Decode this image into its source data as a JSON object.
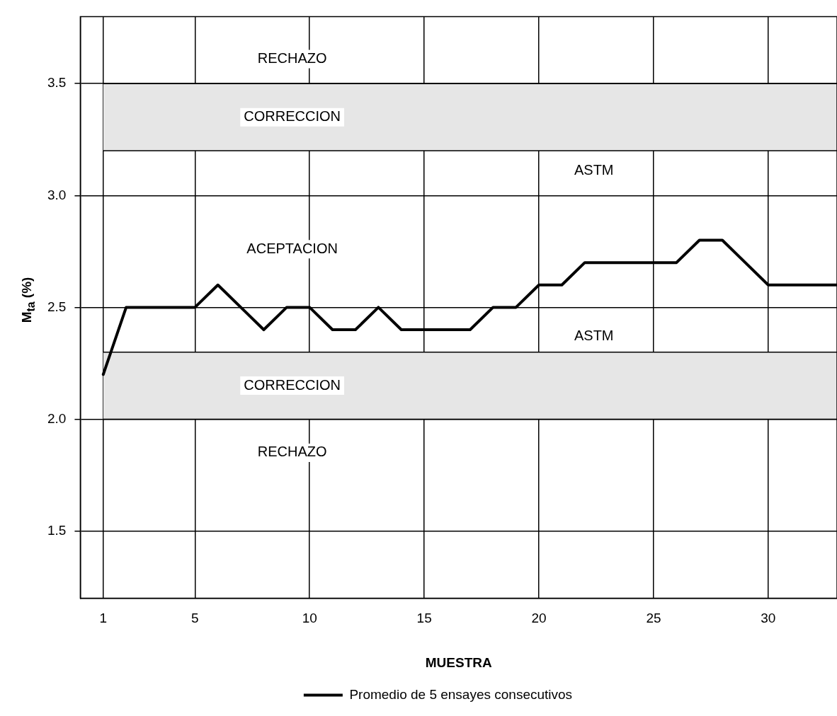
{
  "chart_data": {
    "type": "line",
    "xlabel": "MUESTRA",
    "ylabel": "M$_{ta}$ (%)",
    "x": [
      1,
      2,
      3,
      4,
      5,
      6,
      7,
      8,
      9,
      10,
      11,
      12,
      13,
      14,
      15,
      16,
      17,
      18,
      19,
      20,
      21,
      22,
      23,
      24,
      25,
      26,
      27,
      28,
      29,
      30,
      31,
      32,
      33
    ],
    "series": [
      {
        "name": "Promedio de 5 ensayes consecutivos",
        "color": "#000000",
        "values": [
          2.2,
          2.5,
          2.5,
          2.5,
          2.5,
          2.6,
          2.5,
          2.4,
          2.5,
          2.5,
          2.4,
          2.4,
          2.5,
          2.4,
          2.4,
          2.4,
          2.4,
          2.5,
          2.5,
          2.6,
          2.6,
          2.7,
          2.7,
          2.7,
          2.7,
          2.7,
          2.8,
          2.8,
          2.7,
          2.6,
          2.6,
          2.6,
          2.6
        ]
      }
    ],
    "xlim": [
      0,
      33
    ],
    "xticks": [
      1,
      5,
      10,
      15,
      20,
      25,
      30
    ],
    "ylim": [
      1.2,
      3.8
    ],
    "yticks": [
      {
        "value": 1.5,
        "label": "1.5"
      },
      {
        "value": 2,
        "label": "2.0"
      },
      {
        "value": 2.5,
        "label": "2.5"
      },
      {
        "value": 3,
        "label": "3.0"
      },
      {
        "value": 3.5,
        "label": "3.5"
      }
    ],
    "bands": [
      {
        "axis": "y",
        "from": 3.2,
        "to": 3.5,
        "label": "CORRECCION",
        "color": "#e6e6e6"
      },
      {
        "axis": "y",
        "from": 2.0,
        "to": 2.3,
        "label": "CORRECCION",
        "color": "#e6e6e6"
      }
    ],
    "annotations": [
      "RECHAZO",
      {
        "text": "ASTM",
        "x": 22.4,
        "y": 3.2
      },
      "ACEPTACION",
      {
        "text": "ASTM",
        "x": 22.4,
        "y": 2.3
      },
      "RECHAZO"
    ],
    "grid": true,
    "legend": "bottom",
    "marker": "none",
    "line_style": "solid"
  }
}
